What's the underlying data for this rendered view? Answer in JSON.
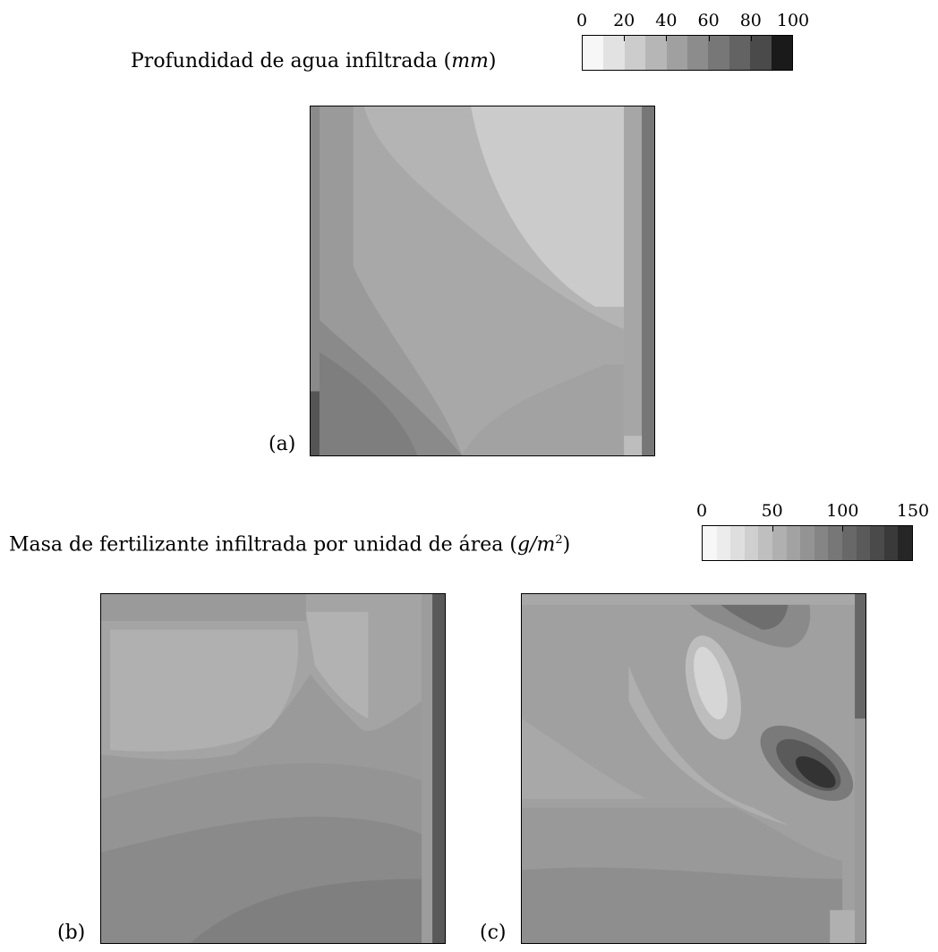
{
  "chart_data": [
    {
      "type": "heatmap",
      "title_prefix": "Profundidad de agua infiltrada (",
      "title_unit": "mm",
      "title_suffix": ")",
      "colorbar": {
        "ticks": [
          "0",
          "20",
          "40",
          "60",
          "80",
          "100"
        ],
        "range": [
          0,
          100
        ],
        "levels": [
          "#f7f7f7",
          "#e2e2e2",
          "#cccccc",
          "#b6b6b6",
          "#a0a0a0",
          "#8c8c8c",
          "#777777",
          "#636363",
          "#4a4a4a",
          "#1a1a1a"
        ]
      },
      "panels": [
        {
          "label": "(a)",
          "description_levels": "infiltrated water depth, lighter top-right, darker lower-left"
        }
      ]
    },
    {
      "type": "heatmap",
      "title_prefix": "Masa de fertilizante infiltrada por unidad de área (",
      "title_unit": "g/m",
      "title_sup": "2",
      "title_suffix": ")",
      "colorbar": {
        "ticks": [
          "0",
          "50",
          "100",
          "150"
        ],
        "range": [
          0,
          150
        ],
        "levels": [
          "#f7f7f7",
          "#ececec",
          "#dedede",
          "#cfcfcf",
          "#bfbfbf",
          "#b0b0b0",
          "#a2a2a2",
          "#939393",
          "#858585",
          "#777777",
          "#686868",
          "#5a5a5a",
          "#4a4a4a",
          "#3a3a3a",
          "#262626"
        ]
      },
      "panels": [
        {
          "label": "(b)"
        },
        {
          "label": "(c)"
        }
      ]
    }
  ]
}
